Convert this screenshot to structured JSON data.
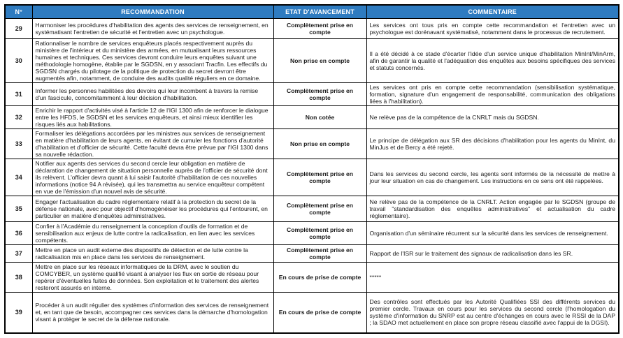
{
  "colors": {
    "header_bg": "#2E7BC0",
    "header_text": "#FFFFFF",
    "border": "#000000",
    "text": "#1A1A1A"
  },
  "table": {
    "columns": [
      {
        "key": "num",
        "label": "N°"
      },
      {
        "key": "recommendation",
        "label": "RECOMMANDATION"
      },
      {
        "key": "status",
        "label": "ETAT D'AVANCEMENT"
      },
      {
        "key": "comment",
        "label": "COMMENTAIRE"
      }
    ],
    "rows": [
      {
        "num": "29",
        "recommendation": "Harmoniser les procédures d'habilitation des agents des services de renseignement, en systématisant l'entretien de sécurité et l'entretien avec un psychologue.",
        "status": "Complètement prise en compte",
        "comment": "Les services ont tous pris en compte cette recommandation et l'entretien avec un psychologue est dorénavant systématisé, notamment dans le processus de recrutement."
      },
      {
        "num": "30",
        "recommendation": "Rationnaliser le nombre de services enquêteurs placés respectivement auprès du ministère de l'intérieur et du ministère des armées, en mutualisant leurs ressources humaines et techniques. Ces services devront conduire leurs enquêtes suivant une méthodologie homogène, établie par le SGDSN, en y associant Tracfin. Les effectifs du SGDSN chargés du pilotage de la politique de protection du secret devront être augmentés afin, notamment, de conduire des audits qualité réguliers en ce domaine.",
        "status": "Non prise en compte",
        "comment": "Il a été décidé à ce stade d'écarter l'idée d'un service unique d'habilitation MinInt/MinArm, afin de garantir la qualité et l'adéquation des enquêtes aux besoins spécifiques des services et statuts concernés."
      },
      {
        "num": "31",
        "recommendation": "Informer les personnes habilitées des devoirs qui leur incombent à travers la remise d'un fascicule, concomitamment à leur décision d'habilitation.",
        "status": "Complètement prise en compte",
        "comment": "Les services ont pris en compte cette recommandation (sensibilisation systématique, formation, signature d'un engagement de responsabilité, communication des obligations liées à l'habilitation)."
      },
      {
        "num": "32",
        "recommendation": "Enrichir le rapport d'activités visé à l'article 12 de l'IGI 1300 afin de renforcer le dialogue entre les HFDS, le SGDSN et les services enquêteurs, et ainsi mieux identifier les risques liés aux habilitations.",
        "status": "Non cotée",
        "comment": "Ne relève pas de la compétence de la CNRLT mais du SGDSN."
      },
      {
        "num": "33",
        "recommendation": "Formaliser les délégations accordées par les ministres aux services de renseignement en matière d'habilitation de leurs agents, en évitant de cumuler les fonctions d'autorité d'habilitation et d'officier de sécurité. Cette faculté devra être prévue par l'IGI 1300 dans sa nouvelle rédaction.",
        "status": "Non prise en compte",
        "comment": "Le principe de délégation aux SR des décisions d'habilitation pour les agents du MinInt, du MinJus et de Bercy a été rejeté."
      },
      {
        "num": "34",
        "recommendation": "Notifier aux agents des services du second cercle leur obligation en matière de déclaration de changement de situation personnelle auprès de l'officier de sécurité dont ils relèvent. L'officier devra quant à lui saisir l'autorité d'habilitation de ces nouvelles informations (notice 94 A révisée), qui les transmettra au service enquêteur compétent en vue de l'émission d'un nouvel avis de sécurité.",
        "status": "Complètement prise en compte",
        "comment": "Dans les services du second cercle, les agents sont informés de la nécessité de mettre à jour leur situation en cas de changement. Les instructions en ce sens ont été rappelées."
      },
      {
        "num": "35",
        "recommendation": "Engager l'actualisation du cadre réglementaire relatif à la protection du secret de la défense nationale, avec pour objectif d'homogénéiser les procédures qui l'entourent, en particulier en matière d'enquêtes administratives.",
        "status": "Complètement prise en compte",
        "comment": "Ne relève pas de la compétence de la CNRLT. Action engagée par le SGDSN (groupe de travail \"standardisation des enquêtes administratives\" et actualisation du cadre réglementaire)."
      },
      {
        "num": "36",
        "recommendation": "Confier à l'Académie du renseignement la conception d'outils de formation et de sensibilisation aux enjeux de lutte contre la radicalisation, en lien avec les services compétents.",
        "status": "Complètement prise en compte",
        "comment": "Organisation d'un séminaire récurrent sur la sécurité dans les services de renseignement."
      },
      {
        "num": "37",
        "recommendation": "Mettre en place un audit externe des dispositifs de détection et de lutte contre la radicalisation mis en place dans les services de renseignement.",
        "status": "Complètement prise en compte",
        "comment": "Rapport de l'ISR sur le traitement des signaux de radicalisation dans les SR."
      },
      {
        "num": "38",
        "recommendation": "Mettre en place sur les réseaux informatiques de la DRM, avec le soutien du COMCYBER, un système qualifié visant à analyser les flux en sortie de réseau pour repérer d'éventuelles fuites de données. Son exploitation et le traitement des alertes resteront assurés en interne.",
        "status": "En cours de prise de compte",
        "comment": "*****"
      },
      {
        "num": "39",
        "recommendation": "Procéder à un audit régulier des systèmes d'information des services de renseignement et, en tant que de besoin, accompagner ces services dans la démarche d'homologation visant à protéger le secret de la défense nationale.",
        "status": "En cours de prise de compte",
        "comment": "Des contrôles sont effectués par les Autorité Qualifiées SSI des différents services du premier cercle. Travaux en cours pour les services du second cercle (l'homologation du système d'information du SNRP est au centre d'échanges en cours avec le RSSI de la DAP ; la SDAO met actuellement en place son propre réseau classifié avec l'appui de la DGSI)."
      }
    ]
  }
}
